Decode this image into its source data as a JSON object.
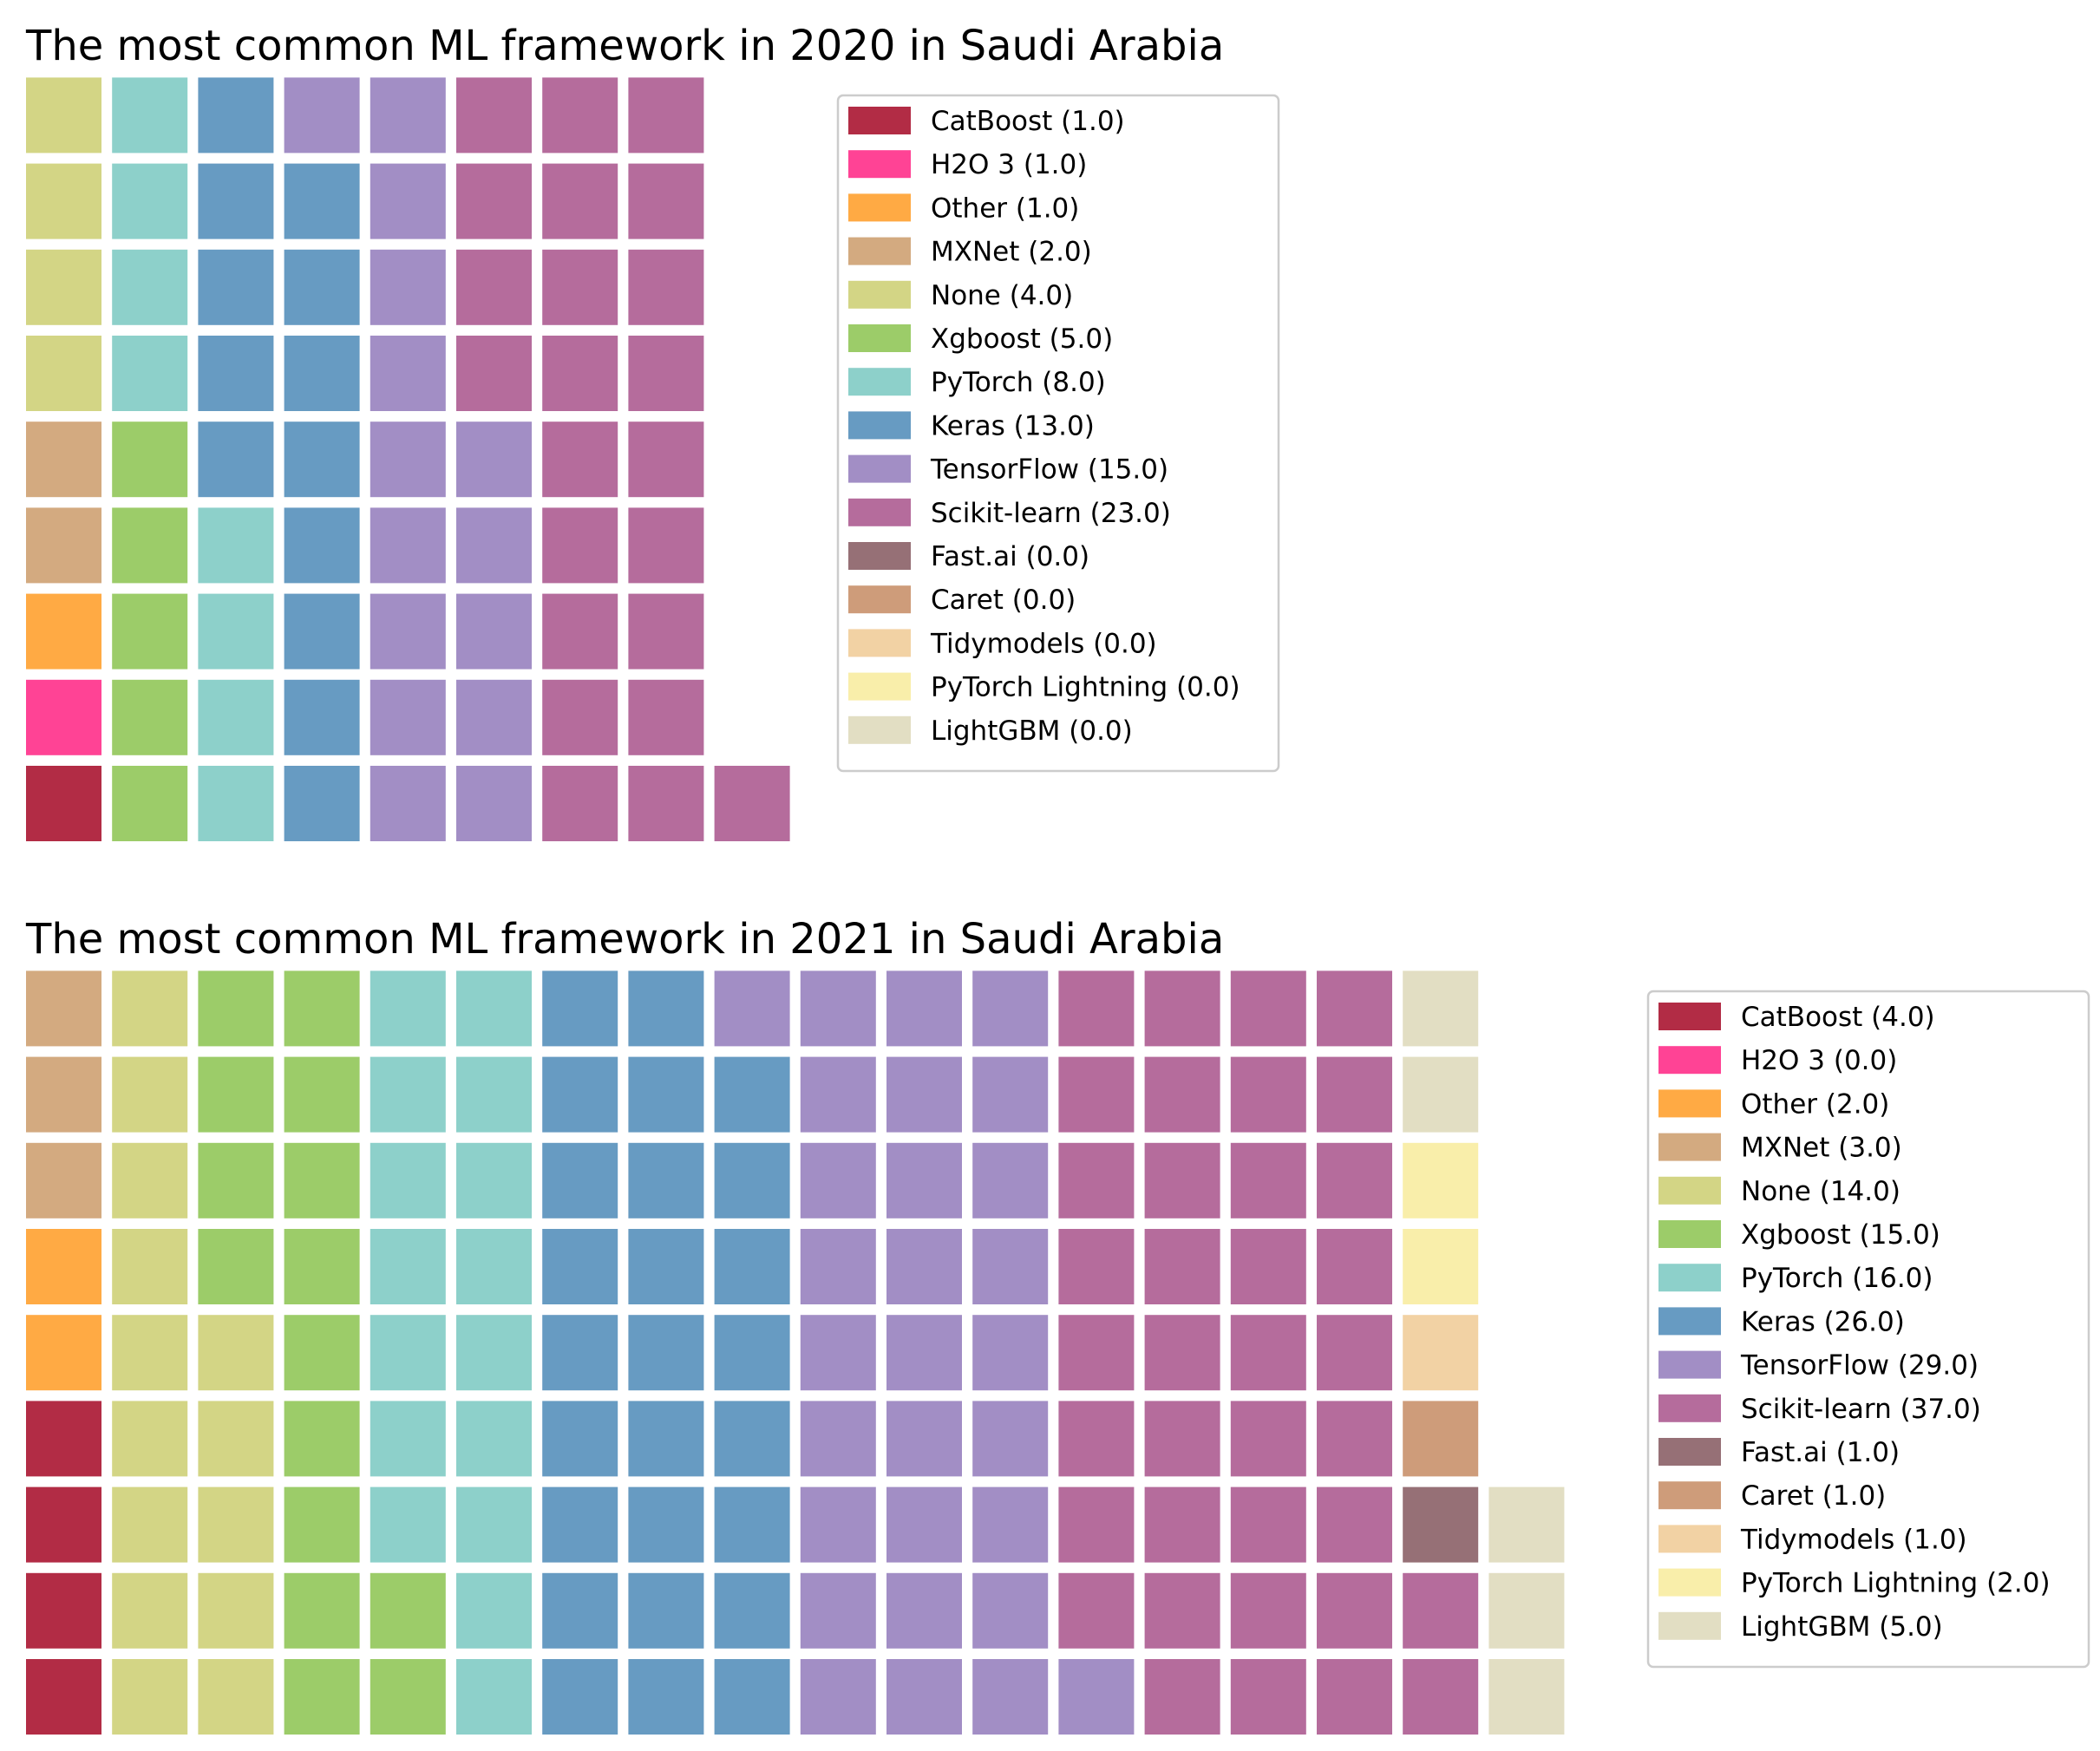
{
  "chart_data": [
    {
      "type": "waffle",
      "title": "The most common ML framework in 2020 in Saudi Arabia",
      "rows": 9,
      "fill_order": "column-major, bottom-to-top",
      "categories": [
        "CatBoost",
        "H2O 3",
        "Other",
        "MXNet",
        "None",
        "Xgboost",
        "PyTorch",
        "Keras",
        "TensorFlow",
        "Scikit-learn",
        "Fast.ai",
        "Caret",
        "Tidymodels",
        "PyTorch Lightning",
        "LightGBM"
      ],
      "values": [
        1,
        1,
        1,
        2,
        4,
        5,
        8,
        13,
        15,
        23,
        0,
        0,
        0,
        0,
        0
      ],
      "legend_labels": [
        "CatBoost (1.0)",
        "H2O 3 (1.0)",
        "Other (1.0)",
        "MXNet (2.0)",
        "None (4.0)",
        "Xgboost (5.0)",
        "PyTorch (8.0)",
        "Keras (13.0)",
        "TensorFlow (15.0)",
        "Scikit-learn (23.0)",
        "Fast.ai (0.0)",
        "Caret (0.0)",
        "Tidymodels (0.0)",
        "PyTorch Lightning (0.0)",
        "LightGBM (0.0)"
      ],
      "legend_position": "right"
    },
    {
      "type": "waffle",
      "title": "The most common ML framework in 2021 in Saudi Arabia",
      "rows": 9,
      "fill_order": "column-major, bottom-to-top",
      "categories": [
        "CatBoost",
        "H2O 3",
        "Other",
        "MXNet",
        "None",
        "Xgboost",
        "PyTorch",
        "Keras",
        "TensorFlow",
        "Scikit-learn",
        "Fast.ai",
        "Caret",
        "Tidymodels",
        "PyTorch Lightning",
        "LightGBM"
      ],
      "values": [
        4,
        0,
        2,
        3,
        14,
        15,
        16,
        26,
        29,
        37,
        1,
        1,
        1,
        2,
        5
      ],
      "legend_labels": [
        "CatBoost (4.0)",
        "H2O 3 (0.0)",
        "Other (2.0)",
        "MXNet (3.0)",
        "None (14.0)",
        "Xgboost (15.0)",
        "PyTorch (16.0)",
        "Keras (26.0)",
        "TensorFlow (29.0)",
        "Scikit-learn (37.0)",
        "Fast.ai (1.0)",
        "Caret (1.0)",
        "Tidymodels (1.0)",
        "PyTorch Lightning (2.0)",
        "LightGBM (5.0)"
      ],
      "legend_position": "right"
    }
  ],
  "colors": {
    "CatBoost": "#b22c45",
    "H2O 3": "#ff4395",
    "Other": "#ffaa44",
    "MXNet": "#d3aa80",
    "None": "#d3d585",
    "Xgboost": "#9ccc69",
    "PyTorch": "#8dd0ca",
    "Keras": "#679bc2",
    "TensorFlow": "#a28ec5",
    "Scikit-learn": "#b56c9c",
    "Fast.ai": "#967076",
    "Caret": "#ce9c7a",
    "Tidymodels": "#f2d2a4",
    "PyTorch Lightning": "#f9eeaa",
    "LightGBM": "#e2dec3"
  }
}
